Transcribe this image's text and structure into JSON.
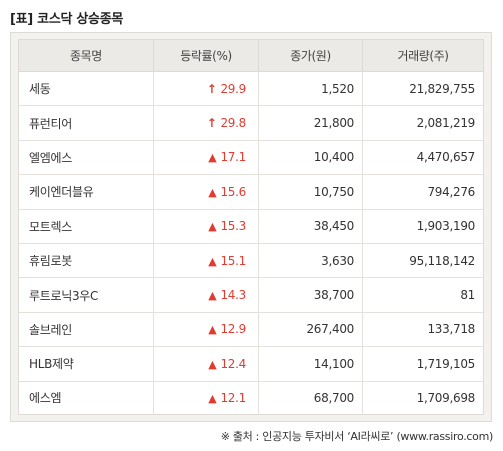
{
  "title": "[표] 코스닥 상승종목",
  "headers": [
    "종목명",
    "등락률(%)",
    "종가(원)",
    "거래량(주)"
  ],
  "colors": {
    "up": "#e03c31",
    "header_bg": "#eceae6",
    "frame_bg": "#f4f2ef"
  },
  "rows": [
    {
      "name": "세동",
      "indicator": "arrow-up-icon",
      "glyph": "↑",
      "rate": "29.9",
      "close": "1,520",
      "volume": "21,829,755"
    },
    {
      "name": "퓨런티어",
      "indicator": "arrow-up-icon",
      "glyph": "↑",
      "rate": "29.8",
      "close": "21,800",
      "volume": "2,081,219"
    },
    {
      "name": "엘엠에스",
      "indicator": "triangle-up-icon",
      "glyph": "▲",
      "rate": "17.1",
      "close": "10,400",
      "volume": "4,470,657"
    },
    {
      "name": "케이엔더블유",
      "indicator": "triangle-up-icon",
      "glyph": "▲",
      "rate": "15.6",
      "close": "10,750",
      "volume": "794,276"
    },
    {
      "name": "모트렉스",
      "indicator": "triangle-up-icon",
      "glyph": "▲",
      "rate": "15.3",
      "close": "38,450",
      "volume": "1,903,190"
    },
    {
      "name": "휴림로봇",
      "indicator": "triangle-up-icon",
      "glyph": "▲",
      "rate": "15.1",
      "close": "3,630",
      "volume": "95,118,142"
    },
    {
      "name": "루트로닉3우C",
      "indicator": "triangle-up-icon",
      "glyph": "▲",
      "rate": "14.3",
      "close": "38,700",
      "volume": "81"
    },
    {
      "name": "솔브레인",
      "indicator": "triangle-up-icon",
      "glyph": "▲",
      "rate": "12.9",
      "close": "267,400",
      "volume": "133,718"
    },
    {
      "name": "HLB제약",
      "indicator": "triangle-up-icon",
      "glyph": "▲",
      "rate": "12.4",
      "close": "14,100",
      "volume": "1,719,105"
    },
    {
      "name": "에스엠",
      "indicator": "triangle-up-icon",
      "glyph": "▲",
      "rate": "12.1",
      "close": "68,700",
      "volume": "1,709,698"
    }
  ],
  "footer": "※ 출처 : 인공지능 투자비서 ‘AI라씨로’ (www.rassiro.com)"
}
